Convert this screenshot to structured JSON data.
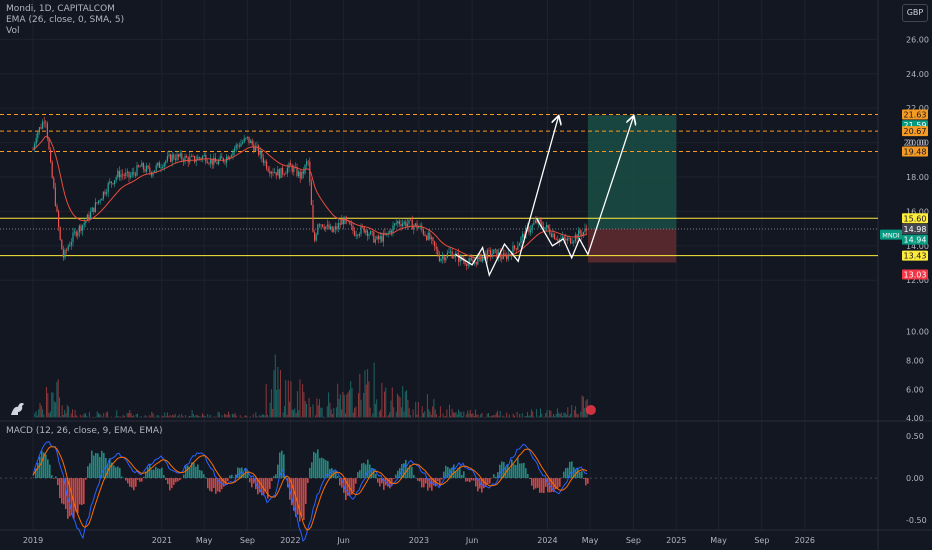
{
  "header": {
    "title": "Mondi, 1D, CAPITALCOM",
    "ema_label": "EMA (26, close, 0, SMA, 5)",
    "vol_label": "Vol",
    "currency": "GBP"
  },
  "macd_panel": {
    "title": "MACD (12, 26, close, 9, EMA, EMA)"
  },
  "colors": {
    "background": "#131722",
    "up": "#26a69a",
    "down": "#ef5350",
    "ema": "#e74c3c",
    "macd_line": "#2962ff",
    "signal_line": "#ff6d00",
    "support_resistance": "#ffeb3b",
    "target_lines": "#f59a23",
    "long_target_zone": "#1b4d45",
    "long_stop_zone": "#5c2a2e"
  },
  "chart_data": [
    {
      "type": "line",
      "name": "price",
      "ylim": [
        11.2,
        27.3
      ],
      "y_ticks": [
        "26.00",
        "24.00",
        "22.00",
        "20.00",
        "18.00",
        "16.00",
        "14.00",
        "12.00"
      ],
      "x_ticks": [
        "2019",
        "2021",
        "May",
        "Sep",
        "2022",
        "Jun",
        "2023",
        "Jun",
        "2024",
        "May",
        "Sep",
        "2025",
        "May",
        "Sep",
        "2026"
      ],
      "path": [
        [
          "2020-01-01",
          19.6
        ],
        [
          "2020-01-10",
          20.5
        ],
        [
          "2020-01-25",
          21.0
        ],
        [
          "2020-02-05",
          21.6
        ],
        [
          "2020-02-20",
          18.6
        ],
        [
          "2020-03-05",
          16.5
        ],
        [
          "2020-03-18",
          14.3
        ],
        [
          "2020-03-28",
          13.3
        ],
        [
          "2020-04-10",
          14.0
        ],
        [
          "2020-05-01",
          14.8
        ],
        [
          "2020-06-01",
          15.5
        ],
        [
          "2020-07-01",
          16.5
        ],
        [
          "2020-08-01",
          17.5
        ],
        [
          "2020-09-01",
          18.2
        ],
        [
          "2020-10-01",
          18.0
        ],
        [
          "2020-11-01",
          18.6
        ],
        [
          "2020-12-01",
          18.3
        ],
        [
          "2021-01-01",
          18.8
        ],
        [
          "2021-02-01",
          19.2
        ],
        [
          "2021-03-01",
          19.1
        ],
        [
          "2021-04-01",
          19.0
        ],
        [
          "2021-05-01",
          19.2
        ],
        [
          "2021-06-01",
          18.8
        ],
        [
          "2021-07-01",
          19.1
        ],
        [
          "2021-08-01",
          19.8
        ],
        [
          "2021-09-01",
          20.2
        ],
        [
          "2021-10-01",
          19.5
        ],
        [
          "2021-11-01",
          18.5
        ],
        [
          "2021-12-01",
          18.2
        ],
        [
          "2022-01-01",
          18.6
        ],
        [
          "2022-02-01",
          18.0
        ],
        [
          "2022-02-20",
          19.0
        ],
        [
          "2022-03-01",
          16.5
        ],
        [
          "2022-03-08",
          14.0
        ],
        [
          "2022-03-20",
          15.4
        ],
        [
          "2022-04-01",
          15.3
        ],
        [
          "2022-05-01",
          14.8
        ],
        [
          "2022-06-01",
          15.5
        ],
        [
          "2022-07-01",
          14.8
        ],
        [
          "2022-08-01",
          15.0
        ],
        [
          "2022-09-01",
          14.3
        ],
        [
          "2022-10-01",
          14.6
        ],
        [
          "2022-11-01",
          15.4
        ],
        [
          "2022-12-01",
          15.3
        ],
        [
          "2023-01-01",
          15.1
        ],
        [
          "2023-02-01",
          14.4
        ],
        [
          "2023-03-01",
          13.3
        ],
        [
          "2023-04-01",
          13.6
        ],
        [
          "2023-05-01",
          13.2
        ],
        [
          "2023-06-01",
          13.0
        ],
        [
          "2023-07-01",
          13.4
        ],
        [
          "2023-08-01",
          13.6
        ],
        [
          "2023-09-01",
          13.3
        ],
        [
          "2023-10-01",
          13.9
        ],
        [
          "2023-11-01",
          14.8
        ],
        [
          "2023-12-01",
          15.4
        ],
        [
          "2024-01-01",
          15.0
        ],
        [
          "2024-02-01",
          14.4
        ],
        [
          "2024-03-01",
          14.3
        ],
        [
          "2024-04-01",
          14.7
        ],
        [
          "2024-04-25",
          14.94
        ]
      ],
      "horizontal_levels": [
        {
          "price": 21.63,
          "style": "dashed",
          "color": "#f59a23"
        },
        {
          "price": 20.67,
          "style": "dashed",
          "color": "#f59a23"
        },
        {
          "price": 19.48,
          "style": "dashed",
          "color": "#f59a23"
        },
        {
          "price": 15.6,
          "style": "solid",
          "color": "#ffeb3b"
        },
        {
          "price": 13.43,
          "style": "solid",
          "color": "#ffeb3b"
        },
        {
          "price": 14.98,
          "style": "dotted",
          "color": "#787b86"
        }
      ],
      "axis_labels": [
        {
          "text": "21.63",
          "price": 21.63,
          "bg": "#f59a23",
          "fg": "#131722"
        },
        {
          "text": "21.59",
          "price": 21.59,
          "bg": "#089981",
          "fg": "#ffffff",
          "offset": 10
        },
        {
          "text": "20.67",
          "price": 20.67,
          "bg": "#f59a23",
          "fg": "#131722"
        },
        {
          "text": "20.00",
          "price": 20.0,
          "bg": "none",
          "fg": "#b2b5be"
        },
        {
          "text": "19.48",
          "price": 19.48,
          "bg": "#f59a23",
          "fg": "#131722"
        },
        {
          "text": "15.60",
          "price": 15.6,
          "bg": "#ffeb3b",
          "fg": "#131722"
        },
        {
          "text": "14.98",
          "price": 14.98,
          "bg": "#434651",
          "fg": "#ffffff"
        },
        {
          "text": "14.94",
          "price": 14.94,
          "bg": "#089981",
          "fg": "#ffffff",
          "offset": 10
        },
        {
          "text": "13.43",
          "price": 13.43,
          "bg": "#ffeb3b",
          "fg": "#131722"
        },
        {
          "text": "13.03",
          "price": 13.03,
          "bg": "#f23645",
          "fg": "#ffffff",
          "offset": 12
        }
      ],
      "symbol_tag": {
        "text": "MNDI",
        "price": 14.94
      },
      "position": {
        "type": "long",
        "entry": 14.98,
        "target": 21.59,
        "stop": 13.03,
        "start": "2024-04-25",
        "end": "2025-01-01"
      },
      "projection_paths": [
        [
          [
            "2023-04-15",
            13.5
          ],
          [
            "2023-06-01",
            12.9
          ],
          [
            "2023-07-01",
            13.9
          ],
          [
            "2023-07-20",
            12.3
          ],
          [
            "2023-09-01",
            14.1
          ],
          [
            "2023-10-10",
            13.1
          ],
          [
            "2024-02-01",
            21.5
          ]
        ],
        [
          [
            "2023-12-01",
            15.6
          ],
          [
            "2024-01-15",
            14.0
          ],
          [
            "2024-02-15",
            14.4
          ],
          [
            "2024-03-10",
            13.3
          ],
          [
            "2024-04-01",
            14.4
          ],
          [
            "2024-04-25",
            13.5
          ],
          [
            "2024-09-01",
            21.5
          ]
        ]
      ]
    },
    {
      "type": "bar",
      "name": "volume",
      "y_ticks": [
        "10.00",
        "8.00",
        "6.00",
        "4.00"
      ],
      "ylim": [
        3.8,
        11.5
      ],
      "buckets_per_month": [
        5.2,
        7.5,
        6.8,
        5.2,
        4.7,
        4.6,
        4.5,
        4.5,
        4.6,
        4.4,
        4.6,
        4.4,
        4.5,
        4.5,
        4.4,
        4.4,
        4.5,
        4.6,
        4.4,
        4.5,
        4.4,
        4.5,
        4.5,
        4.4,
        4.6,
        6.5,
        9.5,
        7.8,
        6.8,
        6.6,
        6.0,
        6.2,
        6.6,
        6.0,
        6.9,
        7.4,
        7.9,
        6.7,
        6.5,
        6.8,
        6.2,
        5.9,
        5.7,
        5.4,
        5.0,
        4.9,
        4.6,
        4.9,
        4.7,
        4.6,
        4.6,
        4.5,
        4.6,
        4.7,
        4.9,
        4.7,
        4.7,
        5.0,
        5.3,
        5.6
      ]
    },
    {
      "type": "line",
      "name": "macd",
      "ylim": [
        -0.62,
        0.55
      ],
      "y_ticks": [
        "0.50",
        "0.00",
        "-0.50"
      ],
      "macd": [
        0.05,
        0.32,
        0.45,
        0.38,
        0.12,
        -0.28,
        -0.55,
        -0.72,
        -0.4,
        -0.1,
        0.1,
        0.25,
        0.3,
        0.2,
        0.1,
        0.05,
        0.12,
        0.2,
        0.25,
        0.15,
        0.05,
        0.1,
        0.2,
        0.3,
        0.28,
        0.12,
        -0.02,
        -0.1,
        -0.05,
        0.05,
        0.1,
        0.0,
        -0.15,
        -0.3,
        -0.2,
        0.1,
        -0.1,
        -0.45,
        -0.78,
        -0.5,
        -0.2,
        0.0,
        0.1,
        0.05,
        -0.15,
        -0.25,
        -0.1,
        0.05,
        0.12,
        0.0,
        -0.1,
        -0.05,
        0.1,
        0.22,
        0.15,
        0.05,
        -0.05,
        -0.1,
        0.0,
        0.1,
        0.18,
        0.12,
        0.05,
        -0.08,
        -0.12,
        -0.05,
        0.08,
        0.2,
        0.32,
        0.4,
        0.3,
        0.15,
        0.0,
        -0.12,
        -0.2,
        -0.05,
        0.1,
        0.12,
        0.05
      ],
      "signal_lag": 2
    }
  ]
}
